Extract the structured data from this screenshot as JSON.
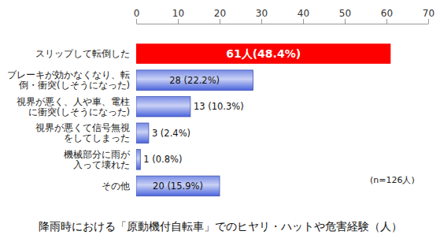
{
  "chart_data": {
    "type": "bar",
    "orientation": "horizontal",
    "title": "降雨時における「原動機付自転車」でのヒヤリ・ハットや危害経験（人）",
    "annotations": [
      "(n=126人)"
    ],
    "categories": [
      "スリップして転倒した",
      "ブレーキが効かなくなり、転\n倒・衝突(しそうになった)",
      "視界が悪く、人や車、電柱\nに衝突(しそうになった)",
      "視界が悪くて信号無視\nをしてしまった",
      "機械部分に雨が\n入って壊れた",
      "その他"
    ],
    "values": [
      61,
      28,
      13,
      3,
      1,
      20
    ],
    "value_labels": [
      "61人(48.4%)",
      "28 (22.2%)",
      "13 (10.3%)",
      "3 (2.4%)",
      "1 (0.8%)",
      "20 (15.9%)"
    ],
    "colors": [
      "#ff0000",
      "#4a64dc",
      "#4a64dc",
      "#4a64dc",
      "#4a64dc",
      "#4a64dc"
    ],
    "xlim": [
      0,
      70
    ],
    "xticks": [
      0,
      10,
      20,
      30,
      40,
      50,
      60,
      70
    ],
    "data_labels": true,
    "grid": false
  }
}
